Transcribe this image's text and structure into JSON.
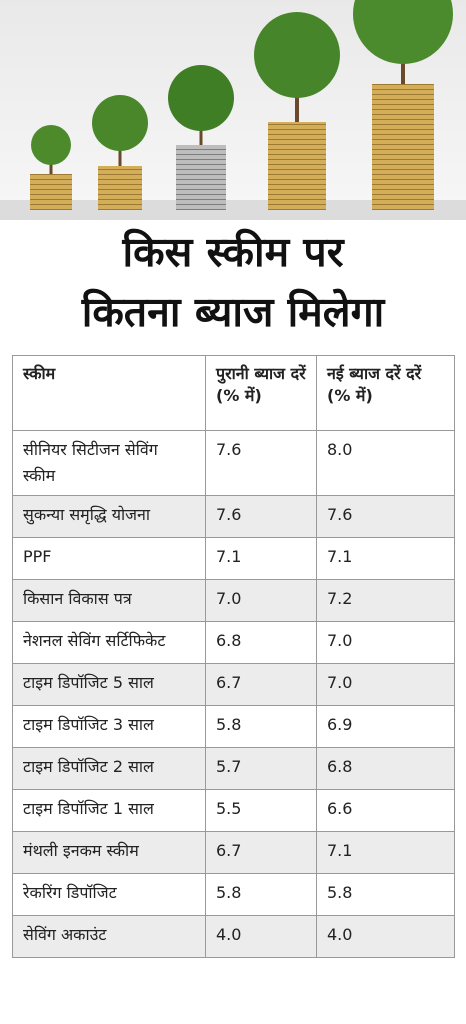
{
  "header": {
    "title_lines": [
      "किस स्कीम पर",
      "कितना ब्याज मिलेगा"
    ]
  },
  "table": {
    "columns": [
      "स्कीम",
      "पुरानी ब्याज दरें (% में)",
      "नई ब्याज दरें दरें (% में)"
    ],
    "rows": [
      [
        "सीनियर सिटीजन सेविंग स्कीम",
        "7.6",
        "8.0"
      ],
      [
        "सुकन्या समृद्धि योजना",
        "7.6",
        "7.6"
      ],
      [
        "PPF",
        "7.1",
        "7.1"
      ],
      [
        "किसान विकास पत्र",
        "7.0",
        "7.2"
      ],
      [
        "नेशनल सेविंग सर्टिफिकेट",
        "6.8",
        "7.0"
      ],
      [
        "टाइम डिपॉजिट 5 साल",
        "6.7",
        "7.0"
      ],
      [
        "टाइम डिपॉजिट 3 साल",
        "5.8",
        "6.9"
      ],
      [
        "टाइम डिपॉजिट 2 साल",
        "5.7",
        "6.8"
      ],
      [
        "टाइम डिपॉजिट 1 साल",
        "5.5",
        "6.6"
      ],
      [
        "मंथली इनकम स्कीम",
        "6.7",
        "7.1"
      ],
      [
        "रेकरिंग डिपॉजिट",
        "5.8",
        "5.8"
      ],
      [
        "सेविंग अकाउंट",
        "4.0",
        "4.0"
      ]
    ]
  }
}
